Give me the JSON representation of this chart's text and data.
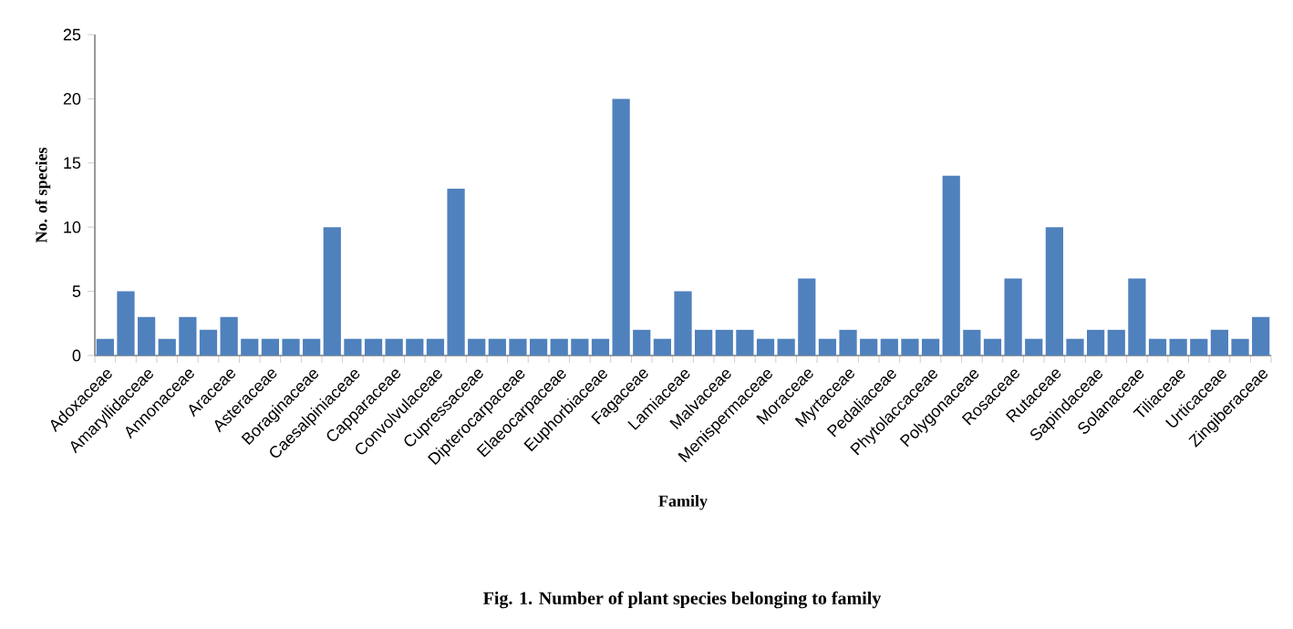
{
  "chart_data": {
    "type": "bar",
    "title": "Fig. 1. Number of plant species belonging to family",
    "xlabel": "Family",
    "ylabel": "No. of species",
    "categories": [
      "Adoxaceae",
      null,
      "Amaryllidaceae",
      null,
      "Annonaceae",
      null,
      "Araceae",
      null,
      "Asteraceae",
      null,
      "Boraginaceae",
      null,
      "Caesalpiniaceae",
      null,
      "Capparaceae",
      null,
      "Convolvulaceae",
      null,
      "Cupressaceae",
      null,
      "Dipterocarpaceae",
      null,
      "Elaeocarpaceae",
      null,
      "Euphorbiaceae",
      null,
      "Fagaceae",
      null,
      "Lamiaceae",
      null,
      "Malvaceae",
      null,
      "Menispermaceae",
      null,
      "Moraceae",
      null,
      "Myrtaceae",
      null,
      "Pedaliaceae",
      null,
      "Phytolaccaceae",
      null,
      "Polygonaceae",
      null,
      "Rosaceae",
      null,
      "Rutaceae",
      null,
      "Sapindaceae",
      null,
      "Solanaceae",
      null,
      "Tiliaceae",
      null,
      "Urticaceae",
      null,
      "Zingiberaceae"
    ],
    "values": [
      1.3,
      5,
      3,
      1.3,
      3,
      2,
      3,
      1.3,
      1.3,
      1.3,
      1.3,
      10,
      1.3,
      1.3,
      1.3,
      1.3,
      1.3,
      13,
      1.3,
      1.3,
      1.3,
      1.3,
      1.3,
      1.3,
      1.3,
      20,
      2,
      1.3,
      5,
      2,
      2,
      2,
      1.3,
      1.3,
      6,
      1.3,
      2,
      1.3,
      1.3,
      1.3,
      1.3,
      14,
      2,
      1.3,
      6,
      1.3,
      10,
      1.3,
      2,
      2,
      6,
      1.3,
      1.3,
      1.3,
      2,
      1.3,
      3
    ],
    "color": "#4f81bd",
    "ylim": [
      0,
      25
    ],
    "yticks": [
      0,
      5,
      10,
      15,
      20,
      25
    ],
    "grid": false
  }
}
